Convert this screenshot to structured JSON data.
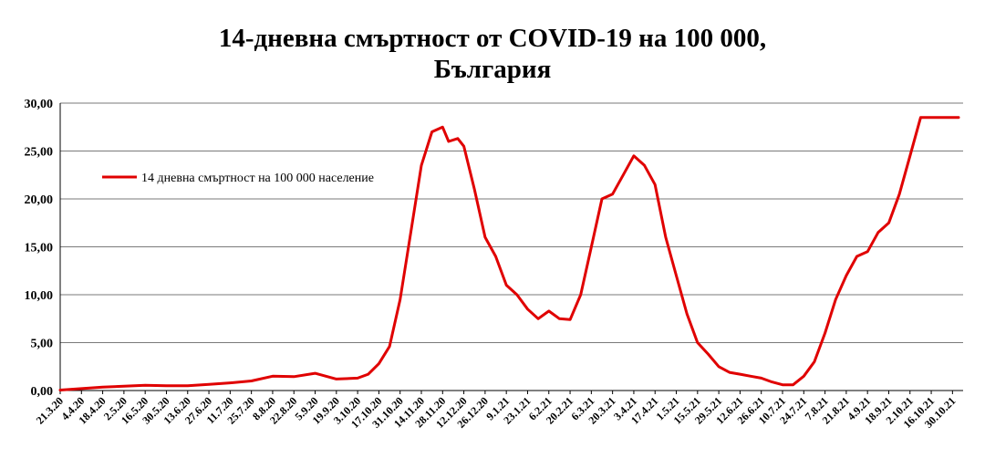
{
  "chart_data": {
    "type": "line",
    "title_line1": "14-дневна смъртност от COVID-19 на 100 000,",
    "title_line2": "България",
    "xlabel": "",
    "ylabel": "",
    "ylim": [
      0,
      30
    ],
    "y_ticks": [
      "0,00",
      "5,00",
      "10,00",
      "15,00",
      "20,00",
      "25,00",
      "30,00"
    ],
    "grid": true,
    "legend_position": "top-left",
    "x_tick_labels": [
      "21.3.20",
      "4.4.20",
      "18.4.20",
      "2.5.20",
      "16.5.20",
      "30.5.20",
      "13.6.20",
      "27.6.20",
      "11.7.20",
      "25.7.20",
      "8.8.20",
      "22.8.20",
      "5.9.20",
      "19.9.20",
      "3.10.20",
      "17.10.20",
      "31.10.20",
      "14.11.20",
      "28.11.20",
      "12.12.20",
      "26.12.20",
      "9.1.21",
      "23.1.21",
      "6.2.21",
      "20.2.21",
      "6.3.21",
      "20.3.21",
      "3.4.21",
      "17.4.21",
      "1.5.21",
      "15.5.21",
      "29.5.21",
      "12.6.21",
      "26.6.21",
      "10.7.21",
      "24.7.21",
      "7.8.21",
      "21.8.21",
      "4.9.21",
      "18.9.21",
      "2.10.21",
      "16.10.21",
      "30.10.21"
    ],
    "series": [
      {
        "name": "14 дневна смъртност на 100 000 население",
        "color": "#e00000",
        "x": [
          "21.3.20",
          "4.4.20",
          "18.4.20",
          "2.5.20",
          "16.5.20",
          "30.5.20",
          "13.6.20",
          "27.6.20",
          "11.7.20",
          "25.7.20",
          "8.8.20",
          "22.8.20",
          "5.9.20",
          "19.9.20",
          "3.10.20",
          "10.10.20",
          "17.10.20",
          "24.10.20",
          "31.10.20",
          "7.11.20",
          "14.11.20",
          "21.11.20",
          "28.11.20",
          "2.12.20",
          "8.12.20",
          "12.12.20",
          "19.12.20",
          "26.12.20",
          "2.1.21",
          "9.1.21",
          "16.1.21",
          "23.1.21",
          "30.1.21",
          "6.2.21",
          "13.2.21",
          "20.2.21",
          "27.2.21",
          "6.3.21",
          "13.3.21",
          "20.3.21",
          "27.3.21",
          "3.4.21",
          "10.4.21",
          "17.4.21",
          "24.4.21",
          "1.5.21",
          "8.5.21",
          "15.5.21",
          "22.5.21",
          "29.5.21",
          "5.6.21",
          "12.6.21",
          "19.6.21",
          "26.6.21",
          "3.7.21",
          "10.7.21",
          "17.7.21",
          "24.7.21",
          "31.7.21",
          "7.8.21",
          "14.8.21",
          "21.8.21",
          "28.8.21",
          "4.9.21",
          "11.9.21",
          "18.9.21",
          "25.9.21",
          "2.10.21",
          "9.10.21",
          "16.10.21",
          "23.10.21",
          "30.10.21",
          "3.11.21"
        ],
        "values": [
          0.05,
          0.2,
          0.35,
          0.45,
          0.55,
          0.5,
          0.5,
          0.65,
          0.8,
          1.0,
          1.5,
          1.45,
          1.8,
          1.2,
          1.3,
          1.7,
          2.8,
          4.6,
          9.5,
          16.5,
          23.5,
          27.0,
          27.5,
          26.0,
          26.3,
          25.5,
          21.0,
          16.0,
          14.0,
          11.0,
          10.0,
          8.5,
          7.5,
          8.3,
          7.5,
          7.4,
          10.0,
          15.0,
          20.0,
          20.5,
          22.5,
          24.5,
          23.5,
          21.5,
          16.0,
          12.0,
          8.0,
          5.0,
          3.8,
          2.5,
          1.9,
          1.7,
          1.5,
          1.3,
          0.9,
          0.6,
          0.6,
          1.5,
          3.0,
          6.0,
          9.5,
          12.0,
          14.0,
          14.5,
          16.5,
          17.5,
          20.5,
          24.5,
          28.5,
          28.5,
          28.5,
          28.5,
          28.5
        ]
      }
    ]
  }
}
